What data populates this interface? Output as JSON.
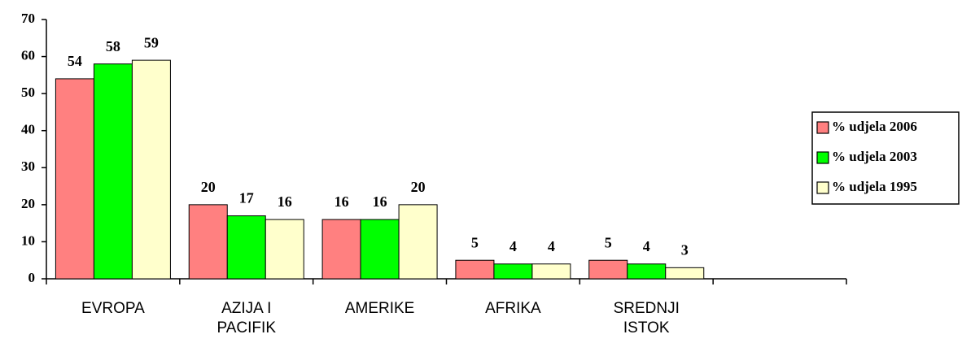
{
  "chart_data": {
    "type": "bar",
    "categories": [
      "EVROPA",
      "AZIJA I PACIFIK",
      "AMERIKE",
      "AFRIKA",
      "SREDNJI ISTOK",
      null
    ],
    "series": [
      {
        "name": "% udjela 2006",
        "color": "#ff8080",
        "values": [
          54,
          20,
          16,
          5,
          5,
          null
        ]
      },
      {
        "name": "% udjela 2003",
        "color": "#00ff00",
        "values": [
          58,
          17,
          16,
          4,
          4,
          null
        ]
      },
      {
        "name": "% udjela 1995",
        "color": "#ffffcc",
        "values": [
          59,
          16,
          20,
          4,
          3,
          null
        ]
      }
    ],
    "ylim": [
      0,
      70
    ],
    "yticks": [
      0,
      10,
      20,
      30,
      40,
      50,
      60,
      70
    ],
    "legend": "right",
    "grid": false
  }
}
